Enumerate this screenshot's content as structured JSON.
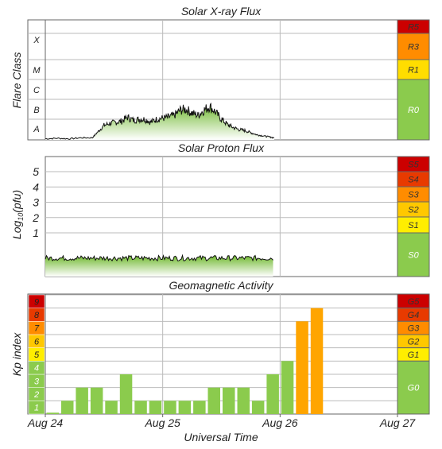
{
  "chart_data": [
    {
      "type": "area",
      "title": "Solar X-ray Flux",
      "ylabel": "Flare Class",
      "y_categories": [
        "A",
        "B",
        "C",
        "M",
        "X"
      ],
      "x_ticks": [
        "Aug 24",
        "Aug 25",
        "Aug 26",
        "Aug 27"
      ],
      "xlim": [
        0,
        3
      ],
      "data_end_day": 1.95,
      "x": [
        0.0,
        0.1,
        0.2,
        0.3,
        0.4,
        0.45,
        0.5,
        0.55,
        0.6,
        0.65,
        0.7,
        0.75,
        0.8,
        0.85,
        0.9,
        0.95,
        1.0,
        1.05,
        1.1,
        1.15,
        1.2,
        1.25,
        1.3,
        1.35,
        1.4,
        1.45,
        1.5,
        1.55,
        1.6,
        1.65,
        1.7,
        1.75,
        1.8,
        1.85,
        1.9,
        1.95
      ],
      "y": [
        0.05,
        0.08,
        0.05,
        0.1,
        0.1,
        0.4,
        0.7,
        0.8,
        0.85,
        0.9,
        1.1,
        0.95,
        1.0,
        1.0,
        0.85,
        1.0,
        1.05,
        1.1,
        1.2,
        1.45,
        1.5,
        1.3,
        1.2,
        1.45,
        1.65,
        1.35,
        1.0,
        0.75,
        0.6,
        0.5,
        0.45,
        0.35,
        0.25,
        0.2,
        0.15,
        0.1
      ],
      "scale": [
        {
          "label": "R5",
          "color": "#cc0000"
        },
        {
          "label": "R3",
          "color": "#ff8c00"
        },
        {
          "label": "R1",
          "color": "#ffdd00"
        },
        {
          "label": "R0",
          "color": "#8bcb4d"
        }
      ]
    },
    {
      "type": "area",
      "title": "Solar Proton Flux",
      "ylabel": "Log10(pfu)",
      "y_ticks": [
        "1",
        "2",
        "3",
        "4",
        "5"
      ],
      "xlim": [
        0,
        3
      ],
      "data_end_day": 1.95,
      "baseline_log10_pfu": -0.65,
      "scale": [
        {
          "label": "S5",
          "color": "#cc0000"
        },
        {
          "label": "S4",
          "color": "#e83a00"
        },
        {
          "label": "S3",
          "color": "#ff8c00"
        },
        {
          "label": "S2",
          "color": "#ffc800"
        },
        {
          "label": "S1",
          "color": "#ffee00"
        },
        {
          "label": "S0",
          "color": "#8bcb4d"
        }
      ]
    },
    {
      "type": "bar",
      "title": "Geomagnetic Activity",
      "ylabel": "Kp index",
      "xlabel": "Universal Time",
      "ylim": [
        0,
        9
      ],
      "x_ticks": [
        "Aug 24",
        "Aug 25",
        "Aug 26",
        "Aug 27"
      ],
      "bar_hours": 3,
      "values": [
        0.1,
        1,
        2,
        2,
        1,
        3,
        1,
        1,
        1,
        1,
        1,
        2,
        2,
        2,
        1,
        3,
        4,
        7,
        8
      ],
      "kp_levels": [
        {
          "label": "1",
          "color": "#8bcb4d"
        },
        {
          "label": "2",
          "color": "#8bcb4d"
        },
        {
          "label": "3",
          "color": "#8bcb4d"
        },
        {
          "label": "4",
          "color": "#8bcb4d"
        },
        {
          "label": "5",
          "color": "#ffee00"
        },
        {
          "label": "6",
          "color": "#ffc800"
        },
        {
          "label": "7",
          "color": "#ff8c00"
        },
        {
          "label": "8",
          "color": "#e83a00"
        },
        {
          "label": "9",
          "color": "#cc0000"
        }
      ],
      "scale": [
        {
          "label": "G5",
          "color": "#cc0000"
        },
        {
          "label": "G4",
          "color": "#e83a00"
        },
        {
          "label": "G3",
          "color": "#ff8c00"
        },
        {
          "label": "G2",
          "color": "#ffc800"
        },
        {
          "label": "G1",
          "color": "#ffee00"
        },
        {
          "label": "G0",
          "color": "#8bcb4d"
        }
      ],
      "bar_colors": {
        "quiet": "#8bcb4d",
        "storm": "#ffa500"
      }
    }
  ]
}
